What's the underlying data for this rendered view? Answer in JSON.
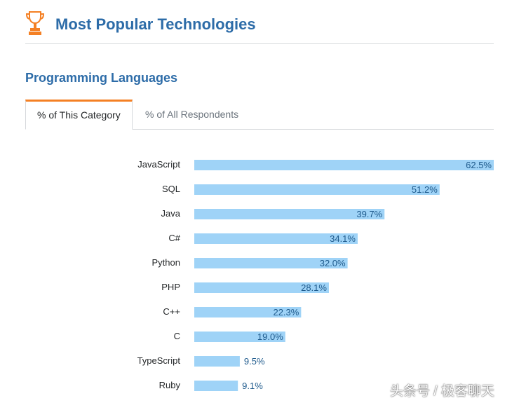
{
  "header": {
    "title": "Most Popular Technologies",
    "icon": "trophy-icon"
  },
  "section": {
    "title": "Programming Languages"
  },
  "tabs": [
    {
      "label": "% of This Category",
      "active": true
    },
    {
      "label": "% of All Respondents",
      "active": false
    }
  ],
  "colors": {
    "accent": "#f48024",
    "title": "#2d6ca8",
    "bar": "#9fd3f7",
    "value_text": "#1e5a8c"
  },
  "chart_data": {
    "type": "bar",
    "orientation": "horizontal",
    "categories": [
      "JavaScript",
      "SQL",
      "Java",
      "C#",
      "Python",
      "PHP",
      "C++",
      "C",
      "TypeScript",
      "Ruby"
    ],
    "values": [
      62.5,
      51.2,
      39.7,
      34.1,
      32.0,
      28.1,
      22.3,
      19.0,
      9.5,
      9.1
    ],
    "value_labels": [
      "62.5%",
      "51.2%",
      "39.7%",
      "34.1%",
      "32.0%",
      "28.1%",
      "22.3%",
      "19.0%",
      "9.5%",
      "9.1%"
    ],
    "title": "",
    "xlabel": "",
    "ylabel": "",
    "xlim": [
      0,
      62.5
    ],
    "grid": false
  },
  "watermark": "头条号 / 极客聊天"
}
